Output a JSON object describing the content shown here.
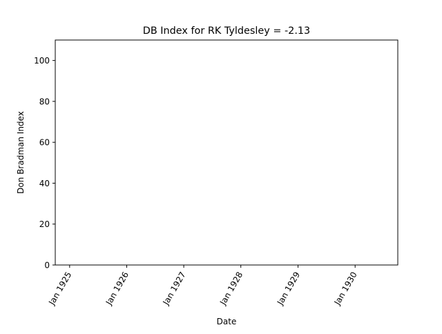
{
  "chart_data": {
    "type": "line",
    "title": "DB Index for RK Tyldesley = -2.13",
    "xlabel": "Date",
    "ylabel": "Don Bradman Index",
    "x_range": [
      "1924-10-01",
      "1930-10-01"
    ],
    "ylim": [
      0,
      110
    ],
    "yticks": [
      0,
      20,
      40,
      60,
      80,
      100
    ],
    "xticks": [
      {
        "label": "Jan 1925",
        "date": "1925-01-01"
      },
      {
        "label": "Jan 1926",
        "date": "1926-01-01"
      },
      {
        "label": "Jan 1927",
        "date": "1927-01-01"
      },
      {
        "label": "Jan 1928",
        "date": "1928-01-01"
      },
      {
        "label": "Jan 1929",
        "date": "1929-01-01"
      },
      {
        "label": "Jan 1930",
        "date": "1930-01-01"
      }
    ],
    "grid": false,
    "series": [],
    "colors": {
      "axes": "#000000",
      "background": "#ffffff"
    }
  }
}
